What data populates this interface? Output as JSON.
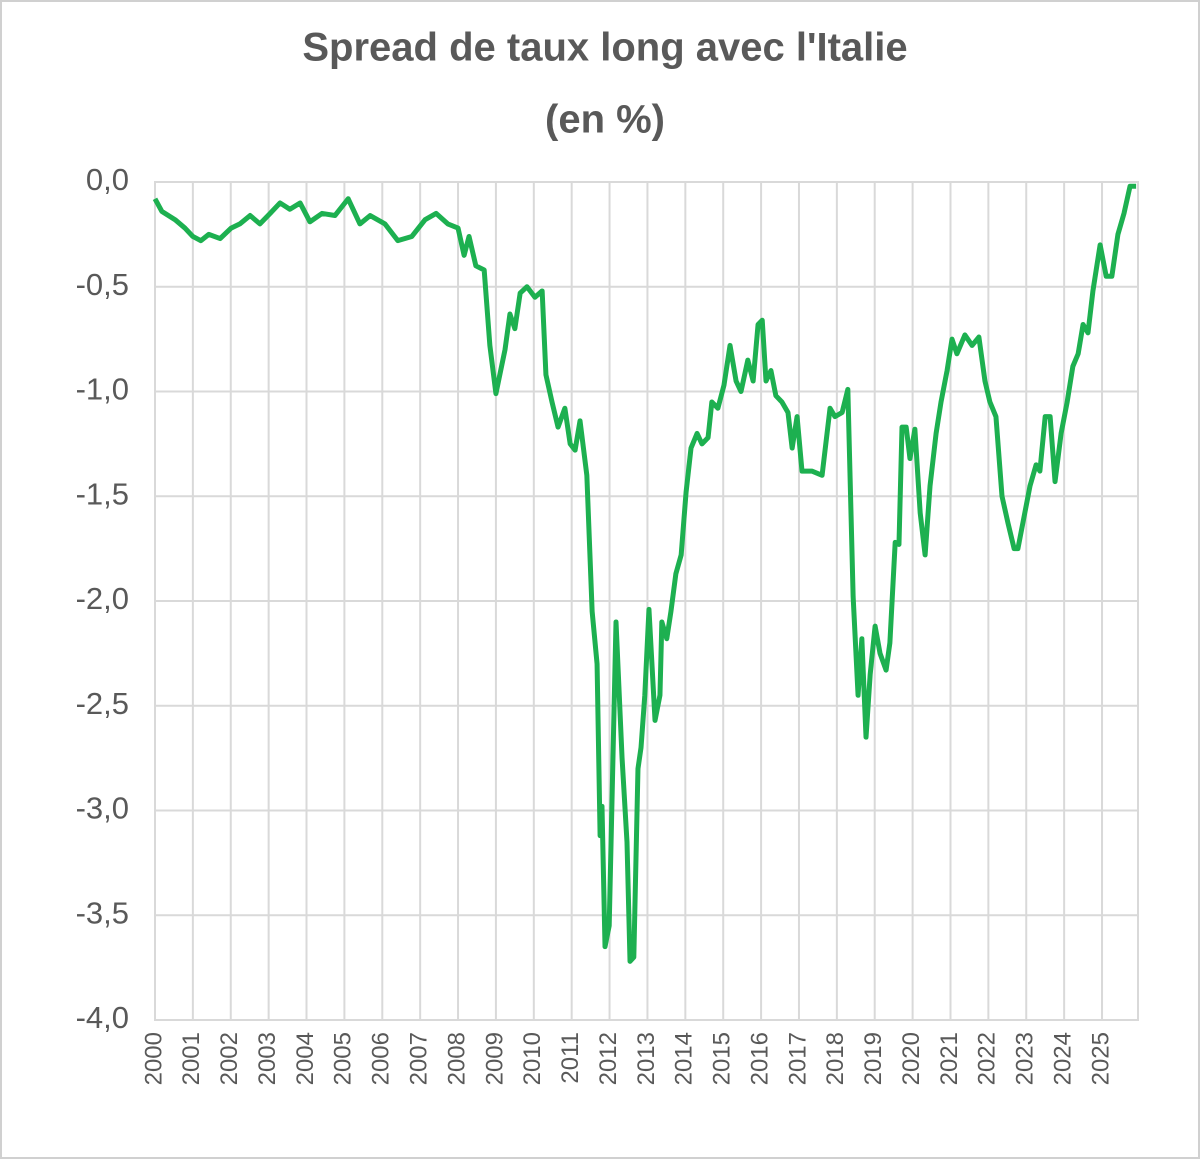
{
  "chart_data": {
    "type": "line",
    "title": "Spread de taux long avec l'Italie",
    "subtitle": "(en %)",
    "color": "#1db050",
    "grid": true,
    "xlim": [
      2000,
      2025.95
    ],
    "xticks": [
      2000,
      2001,
      2002,
      2003,
      2004,
      2005,
      2006,
      2007,
      2008,
      2009,
      2010,
      2011,
      2012,
      2013,
      2014,
      2015,
      2016,
      2017,
      2018,
      2019,
      2020,
      2021,
      2022,
      2023,
      2024,
      2025
    ],
    "ylim": [
      -4,
      0
    ],
    "yticks": [
      {
        "value": 0,
        "label": "0,0"
      },
      {
        "value": -0.5,
        "label": "-0,5"
      },
      {
        "value": -1,
        "label": "-1,0"
      },
      {
        "value": -1.5,
        "label": "-1,5"
      },
      {
        "value": -2,
        "label": "-2,0"
      },
      {
        "value": -2.5,
        "label": "-2,5"
      },
      {
        "value": -3,
        "label": "-3,0"
      },
      {
        "value": -3.5,
        "label": "-3,5"
      },
      {
        "value": -4,
        "label": "-4,0"
      }
    ],
    "x": [
      2000,
      2000.18,
      2000.53,
      2000.79,
      2001.0,
      2001.21,
      2001.42,
      2001.72,
      2002.01,
      2002.24,
      2002.51,
      2002.77,
      2003.04,
      2003.3,
      2003.56,
      2003.83,
      2004.09,
      2004.41,
      2004.75,
      2005.1,
      2005.41,
      2005.68,
      2006.07,
      2006.41,
      2006.78,
      2007.13,
      2007.42,
      2007.73,
      2008.0,
      2008.16,
      2008.29,
      2008.47,
      2008.69,
      2008.84,
      2009.0,
      2009.24,
      2009.37,
      2009.5,
      2009.64,
      2009.82,
      2010.03,
      2010.22,
      2010.32,
      2010.48,
      2010.64,
      2010.82,
      2010.96,
      2011.09,
      2011.22,
      2011.4,
      2011.54,
      2011.67,
      2011.75,
      2011.8,
      2011.88,
      2011.99,
      2012.17,
      2012.33,
      2012.46,
      2012.54,
      2012.64,
      2012.75,
      2012.83,
      2012.93,
      2013.04,
      2013.2,
      2013.33,
      2013.38,
      2013.51,
      2013.62,
      2013.75,
      2013.89,
      2014.02,
      2014.15,
      2014.31,
      2014.44,
      2014.6,
      2014.7,
      2014.86,
      2015.02,
      2015.18,
      2015.34,
      2015.47,
      2015.65,
      2015.79,
      2015.92,
      2016.03,
      2016.13,
      2016.26,
      2016.39,
      2016.55,
      2016.71,
      2016.82,
      2016.95,
      2017.08,
      2017.34,
      2017.61,
      2017.82,
      2017.95,
      2018.14,
      2018.29,
      2018.43,
      2018.56,
      2018.66,
      2018.77,
      2018.88,
      2019.01,
      2019.14,
      2019.3,
      2019.4,
      2019.54,
      2019.64,
      2019.72,
      2019.83,
      2019.93,
      2020.06,
      2020.2,
      2020.33,
      2020.46,
      2020.62,
      2020.75,
      2020.91,
      2021.04,
      2021.17,
      2021.38,
      2021.57,
      2021.75,
      2021.91,
      2022.04,
      2022.2,
      2022.36,
      2022.52,
      2022.68,
      2022.78,
      2022.94,
      2023.1,
      2023.26,
      2023.36,
      2023.5,
      2023.63,
      2023.76,
      2023.92,
      2024.08,
      2024.23,
      2024.37,
      2024.5,
      2024.63,
      2024.76,
      2024.95,
      2025.11,
      2025.26,
      2025.42,
      2025.58,
      2025.74,
      2025.9
    ],
    "values": [
      -0.08,
      -0.14,
      -0.18,
      -0.22,
      -0.26,
      -0.28,
      -0.25,
      -0.27,
      -0.22,
      -0.2,
      -0.16,
      -0.2,
      -0.15,
      -0.1,
      -0.13,
      -0.1,
      -0.19,
      -0.15,
      -0.16,
      -0.08,
      -0.2,
      -0.16,
      -0.2,
      -0.28,
      -0.26,
      -0.18,
      -0.15,
      -0.2,
      -0.22,
      -0.35,
      -0.26,
      -0.4,
      -0.42,
      -0.78,
      -1.01,
      -0.8,
      -0.63,
      -0.7,
      -0.53,
      -0.5,
      -0.55,
      -0.52,
      -0.92,
      -1.05,
      -1.17,
      -1.08,
      -1.25,
      -1.28,
      -1.14,
      -1.4,
      -2.05,
      -2.3,
      -3.12,
      -2.98,
      -3.65,
      -3.55,
      -2.1,
      -2.75,
      -3.15,
      -3.72,
      -3.7,
      -2.8,
      -2.7,
      -2.45,
      -2.04,
      -2.57,
      -2.45,
      -2.1,
      -2.18,
      -2.05,
      -1.87,
      -1.78,
      -1.48,
      -1.27,
      -1.2,
      -1.25,
      -1.22,
      -1.05,
      -1.08,
      -0.97,
      -0.78,
      -0.95,
      -1.0,
      -0.85,
      -0.95,
      -0.68,
      -0.66,
      -0.95,
      -0.9,
      -1.02,
      -1.05,
      -1.1,
      -1.27,
      -1.12,
      -1.38,
      -1.38,
      -1.4,
      -1.08,
      -1.12,
      -1.1,
      -0.99,
      -1.98,
      -2.45,
      -2.18,
      -2.65,
      -2.35,
      -2.12,
      -2.25,
      -2.33,
      -2.2,
      -1.72,
      -1.73,
      -1.17,
      -1.17,
      -1.32,
      -1.18,
      -1.58,
      -1.78,
      -1.45,
      -1.2,
      -1.05,
      -0.9,
      -0.75,
      -0.82,
      -0.73,
      -0.78,
      -0.74,
      -0.95,
      -1.05,
      -1.12,
      -1.5,
      -1.63,
      -1.75,
      -1.75,
      -1.6,
      -1.45,
      -1.35,
      -1.38,
      -1.12,
      -1.12,
      -1.43,
      -1.2,
      -1.05,
      -0.88,
      -0.82,
      -0.68,
      -0.72,
      -0.52,
      -0.3,
      -0.45,
      -0.45,
      -0.25,
      -0.15,
      -0.02,
      -0.02
    ]
  }
}
